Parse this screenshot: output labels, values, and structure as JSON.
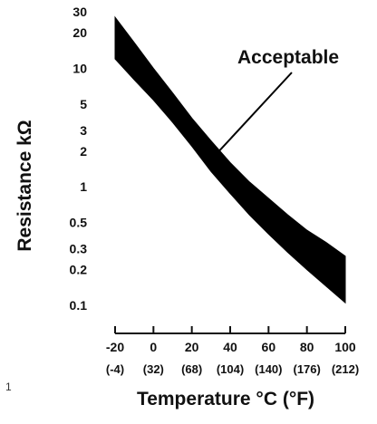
{
  "chart_data": {
    "type": "area",
    "title": "",
    "xlabel": "Temperature °C (°F)",
    "ylabel": "Resistance kΩ",
    "yscale": "log",
    "ylim": [
      0.1,
      30
    ],
    "xlim": [
      -20,
      100
    ],
    "y_ticks": [
      "30",
      "20",
      "10",
      "5",
      "3",
      "2",
      "1",
      "0.5",
      "0.3",
      "0.2",
      "0.1"
    ],
    "x_ticks_c": [
      "-20",
      "0",
      "20",
      "40",
      "60",
      "80",
      "100"
    ],
    "x_ticks_f": [
      "(-4)",
      "(32)",
      "(68)",
      "(104)",
      "(140)",
      "(176)",
      "(212)"
    ],
    "band": {
      "name": "Acceptable",
      "x": [
        -20,
        -10,
        0,
        10,
        20,
        30,
        40,
        50,
        60,
        70,
        80,
        90,
        100
      ],
      "upper": [
        27,
        16.5,
        10,
        6.2,
        3.8,
        2.45,
        1.6,
        1.1,
        0.8,
        0.58,
        0.43,
        0.34,
        0.26
      ],
      "lower": [
        12,
        8,
        5.4,
        3.5,
        2.2,
        1.35,
        0.88,
        0.58,
        0.4,
        0.28,
        0.2,
        0.145,
        0.105
      ]
    },
    "annotation": {
      "text": "Acceptable",
      "arrow_target": {
        "x": 30,
        "y": 1.7
      }
    },
    "grid": false,
    "legend": "none"
  },
  "stray_mark": "1"
}
